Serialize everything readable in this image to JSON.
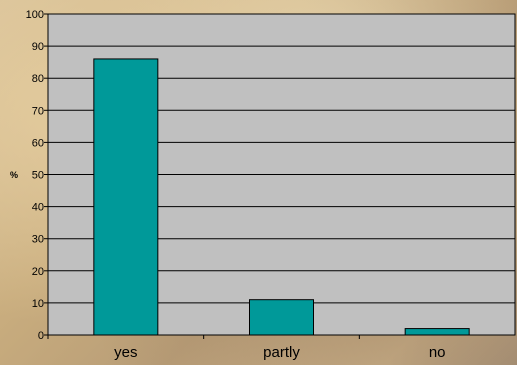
{
  "chart_data": {
    "type": "bar",
    "categories": [
      "yes",
      "partly",
      "no"
    ],
    "values": [
      86,
      11,
      2
    ],
    "ylabel": "%",
    "ylim": [
      0,
      100
    ],
    "yticks": [
      0,
      10,
      20,
      30,
      40,
      50,
      60,
      70,
      80,
      90,
      100
    ],
    "grid": true,
    "colors": {
      "bar": "#009999",
      "bar_border": "#000000",
      "plot_background": "#c0c0c0",
      "gridline": "#000000"
    }
  }
}
